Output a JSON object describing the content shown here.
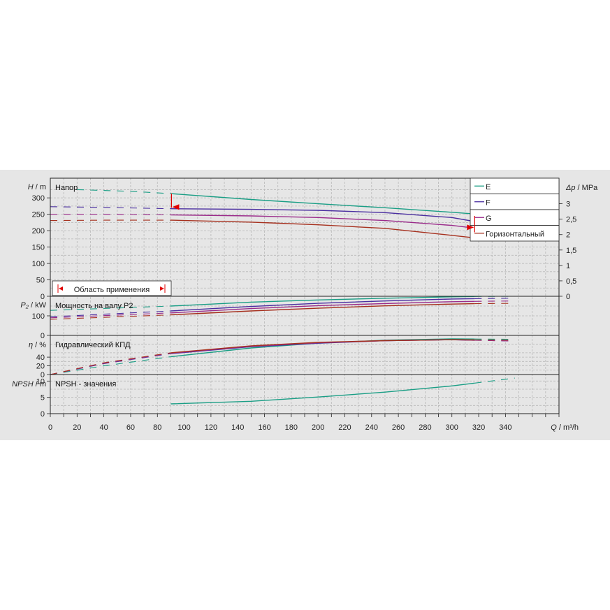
{
  "chart_data": {
    "type": "line",
    "x_axis": {
      "label": "Q / m³/h",
      "min": 0,
      "max": 380,
      "ticks": [
        0,
        20,
        40,
        60,
        80,
        100,
        120,
        140,
        160,
        180,
        200,
        220,
        240,
        260,
        280,
        300,
        320,
        340
      ]
    },
    "colors": {
      "E": "#1a9e85",
      "F": "#4a2ea0",
      "G": "#9a2a8a",
      "Горизонтальный": "#a6301e",
      "operating_range": "#e00000"
    },
    "legend": [
      "E",
      "F",
      "G",
      "Горизонтальный"
    ],
    "operating_range": {
      "label": "Область применения",
      "from": 90,
      "to": 317
    },
    "panels": [
      {
        "id": "head",
        "title": "Напор",
        "ylabel": "H / m",
        "ylim": [
          0,
          360
        ],
        "yticks": [
          0,
          50,
          100,
          150,
          200,
          250,
          300
        ],
        "y2label": "Δp / MPa",
        "y2ticks": [
          "0",
          "0,5",
          "1",
          "1,5",
          "2",
          "2,5",
          "3"
        ],
        "series": [
          {
            "name": "E",
            "x": [
              20,
              60,
              90,
              150,
              200,
              250,
              300,
              317
            ],
            "y": [
              325,
              320,
              313,
              295,
              282,
              270,
              256,
              251
            ]
          },
          {
            "name": "F",
            "x": [
              0,
              40,
              90,
              150,
              200,
              250,
              300,
              317
            ],
            "y": [
              273,
              271,
              267,
              265,
              262,
              255,
              240,
              228
            ]
          },
          {
            "name": "G",
            "x": [
              0,
              40,
              90,
              150,
              200,
              250,
              300,
              317
            ],
            "y": [
              250,
              250,
              248,
              245,
              240,
              231,
              216,
              208
            ]
          },
          {
            "name": "Горизонтальный",
            "x": [
              0,
              40,
              90,
              150,
              200,
              250,
              290,
              317
            ],
            "y": [
              231,
              232,
              232,
              226,
              218,
              207,
              190,
              178
            ]
          }
        ]
      },
      {
        "id": "power",
        "title": "Мощность на валу P2",
        "ylabel": "P₂ / kW",
        "ylim": [
          0,
          200
        ],
        "yticks": [
          0,
          100
        ],
        "series": [
          {
            "name": "E",
            "x": [
              0,
              90,
              150,
              200,
              250,
              300,
              317,
              345
            ],
            "y": [
              128,
              150,
              170,
              181,
              190,
              197,
              199,
              200
            ]
          },
          {
            "name": "F",
            "x": [
              0,
              90,
              150,
              200,
              250,
              300,
              317,
              345
            ],
            "y": [
              95,
              125,
              148,
              164,
              176,
              186,
              188,
              190
            ]
          },
          {
            "name": "G",
            "x": [
              0,
              90,
              150,
              200,
              250,
              300,
              317,
              345
            ],
            "y": [
              90,
              115,
              137,
              152,
              163,
              172,
              174,
              176
            ]
          },
          {
            "name": "Горизонтальный",
            "x": [
              0,
              90,
              150,
              200,
              250,
              300,
              317,
              345
            ],
            "y": [
              82,
              105,
              125,
              139,
              151,
              160,
              162,
              164
            ]
          }
        ]
      },
      {
        "id": "efficiency",
        "title": "Гидравлический КПД",
        "ylabel": "η / %",
        "ylim": [
          0,
          90
        ],
        "yticks": [
          0,
          20,
          40
        ],
        "series": [
          {
            "name": "E",
            "x": [
              0,
              40,
              90,
              150,
              200,
              250,
              300,
              345
            ],
            "y": [
              0,
              20,
              41,
              61,
              72,
              79,
              82,
              81
            ]
          },
          {
            "name": "F",
            "x": [
              0,
              40,
              90,
              150,
              200,
              250,
              300,
              345
            ],
            "y": [
              0,
              25,
              48,
              64,
              72,
              78,
              80,
              77
            ]
          },
          {
            "name": "G",
            "x": [
              0,
              40,
              90,
              150,
              200,
              250,
              300,
              345
            ],
            "y": [
              0,
              26,
              49,
              65,
              73,
              78,
              80,
              77
            ]
          },
          {
            "name": "Горизонтальный",
            "x": [
              0,
              40,
              90,
              150,
              200,
              250,
              300,
              345
            ],
            "y": [
              0,
              27,
              50,
              66,
              74,
              78,
              80,
              79
            ]
          }
        ]
      },
      {
        "id": "npsh",
        "title": "NPSH - значения",
        "ylabel": "NPSH / m",
        "ylim": [
          0,
          12
        ],
        "yticks": [
          0,
          5,
          10
        ],
        "series": [
          {
            "name": "E",
            "x": [
              90,
              150,
              200,
              250,
              300,
              347
            ],
            "y": [
              3,
              3.8,
              5.1,
              6.6,
              8.5,
              10.9
            ]
          }
        ]
      }
    ]
  }
}
